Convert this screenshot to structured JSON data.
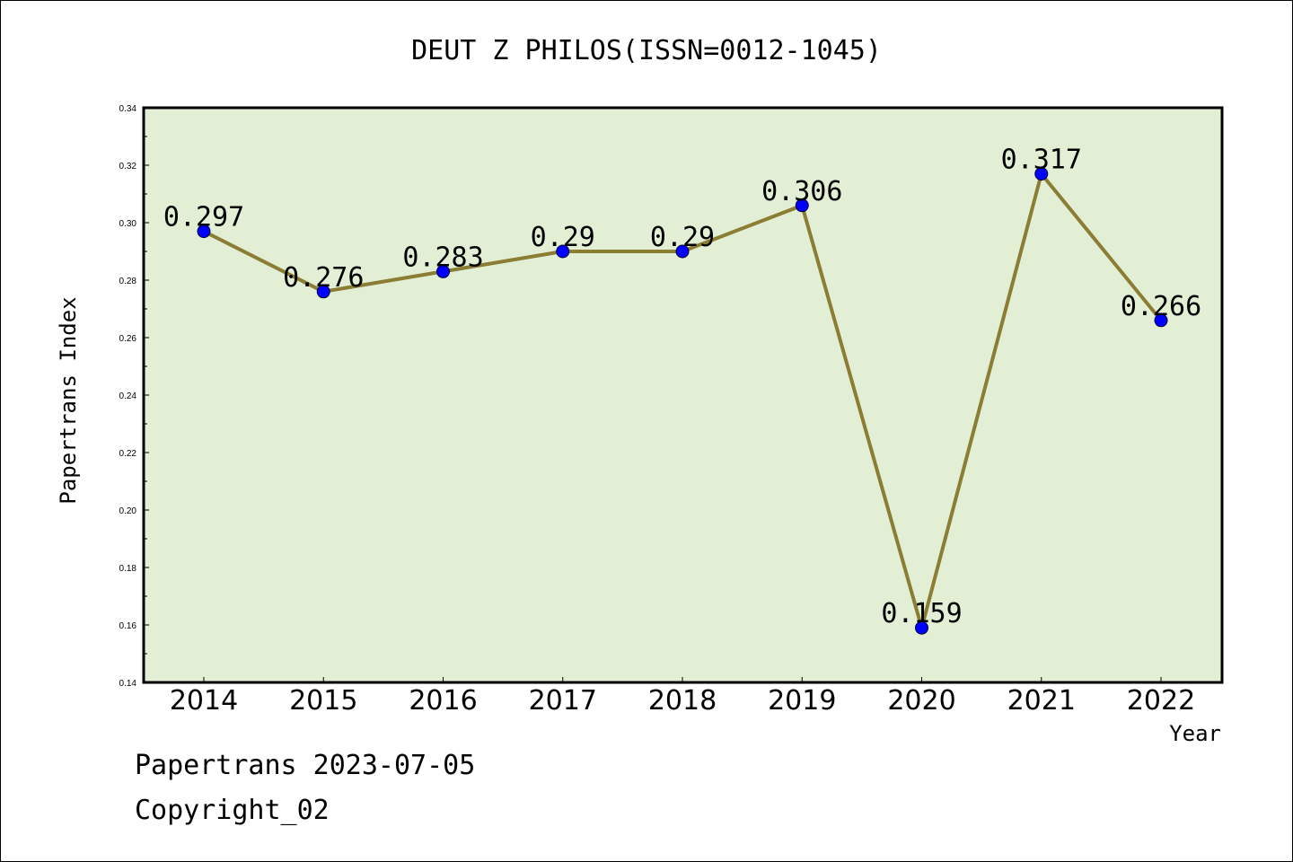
{
  "chart_data": {
    "type": "line",
    "title": "DEUT Z PHILOS(ISSN=0012-1045)",
    "xlabel": "Year",
    "ylabel": "Papertrans Index",
    "categories": [
      "2014",
      "2015",
      "2016",
      "2017",
      "2018",
      "2019",
      "2020",
      "2021",
      "2022"
    ],
    "values": [
      0.297,
      0.276,
      0.283,
      0.29,
      0.29,
      0.306,
      0.159,
      0.317,
      0.266
    ],
    "data_labels": [
      "0.297",
      "0.276",
      "0.283",
      "0.29",
      "0.29",
      "0.306",
      "0.159",
      "0.317",
      "0.266"
    ],
    "ylim": [
      0.14,
      0.34
    ],
    "yticks": [
      "0.14",
      "0.16",
      "0.18",
      "0.20",
      "0.22",
      "0.24",
      "0.26",
      "0.28",
      "0.30",
      "0.32",
      "0.34"
    ],
    "grid": false,
    "colors": {
      "plot_background": "#e2efd5",
      "line": "#8b7d34",
      "marker": "#0000ff"
    }
  },
  "footer": {
    "line1": "Papertrans 2023-07-05",
    "line2": "Copyright_02"
  }
}
